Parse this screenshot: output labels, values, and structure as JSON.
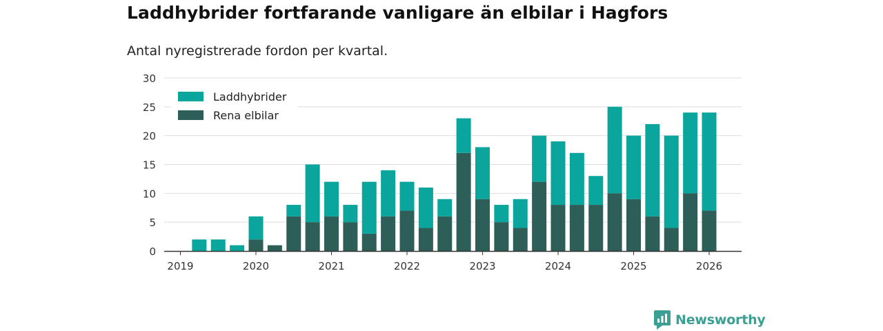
{
  "header": {
    "title": "Laddhybrider fortfarande vanligare än elbilar i Hagfors",
    "subtitle": "Antal nyregistrerade fordon per kvartal."
  },
  "brand": {
    "name": "Newsworthy",
    "icon": "newsworthy-logo-icon"
  },
  "colors": {
    "phev": "#0aa69d",
    "bev": "#2e5e58",
    "grid": "#dddddd",
    "axis": "#333333"
  },
  "chart_data": {
    "type": "bar",
    "stacked": true,
    "title": "Laddhybrider fortfarande vanligare än elbilar i Hagfors",
    "subtitle": "Antal nyregistrerade fordon per kvartal.",
    "xlabel": "",
    "ylabel": "",
    "ylim": [
      0,
      30
    ],
    "yticks": [
      0,
      5,
      10,
      15,
      20,
      25,
      30
    ],
    "xticks": [
      "2019",
      "2020",
      "2021",
      "2022",
      "2023",
      "2024",
      "2025",
      "2026"
    ],
    "xlim": [
      "2019-Q1",
      "2026-Q1"
    ],
    "legend_position": "top-left",
    "categories": [
      "2019-Q2",
      "2019-Q3",
      "2019-Q4",
      "2020-Q1",
      "2020-Q2",
      "2020-Q3",
      "2020-Q4",
      "2021-Q1",
      "2021-Q2",
      "2021-Q3",
      "2021-Q4",
      "2022-Q1",
      "2022-Q2",
      "2022-Q3",
      "2022-Q4",
      "2023-Q1",
      "2023-Q2",
      "2023-Q3",
      "2023-Q4",
      "2024-Q1",
      "2024-Q2",
      "2024-Q3",
      "2024-Q4",
      "2025-Q1",
      "2025-Q2",
      "2025-Q3",
      "2025-Q4",
      "2026-Q1"
    ],
    "series": [
      {
        "name": "Rena elbilar",
        "values": [
          0,
          0,
          0,
          2,
          1,
          6,
          5,
          6,
          5,
          3,
          6,
          7,
          4,
          6,
          17,
          9,
          5,
          4,
          12,
          8,
          8,
          8,
          10,
          9,
          6,
          4,
          10,
          7
        ]
      },
      {
        "name": "Laddhybrider",
        "values": [
          2,
          2,
          1,
          4,
          0,
          2,
          10,
          6,
          3,
          9,
          8,
          5,
          7,
          3,
          6,
          9,
          3,
          5,
          8,
          11,
          9,
          5,
          15,
          11,
          16,
          16,
          14,
          17
        ]
      }
    ],
    "legend": [
      "Laddhybrider",
      "Rena elbilar"
    ]
  }
}
